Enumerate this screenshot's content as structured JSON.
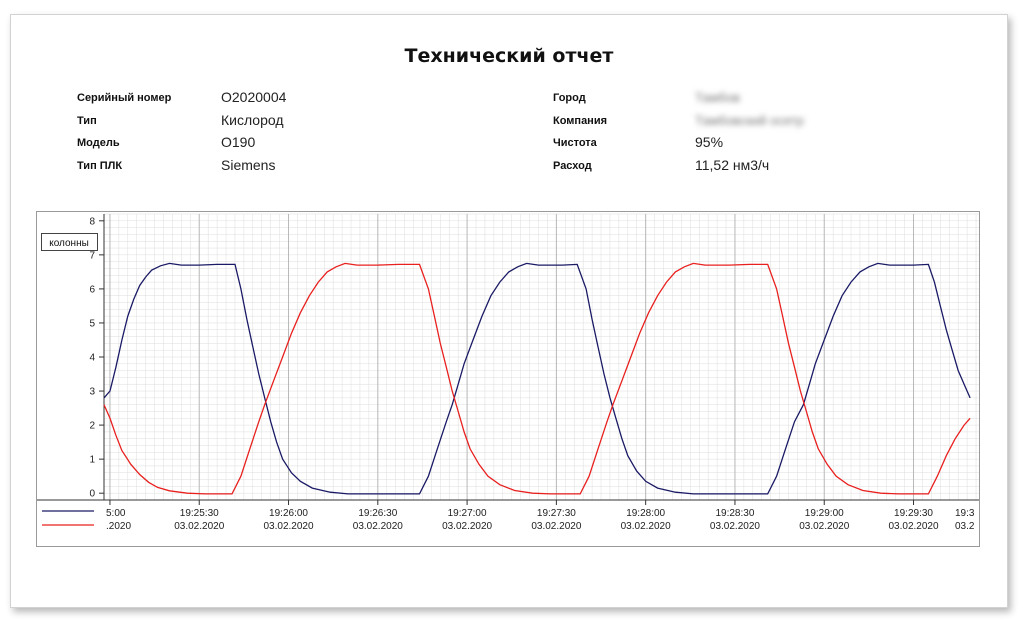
{
  "report": {
    "title": "Технический отчет",
    "fields_left": [
      {
        "label": "Серийный номер",
        "value": "O2020004"
      },
      {
        "label": "Тип",
        "value": "Кислород"
      },
      {
        "label": "Модель",
        "value": "O190"
      },
      {
        "label": "Тип ПЛК",
        "value": "Siemens"
      }
    ],
    "fields_right": [
      {
        "label": "Город",
        "value": "Тамбов"
      },
      {
        "label": "Компания",
        "value": "Тамбовский осетр"
      },
      {
        "label": "Чистота",
        "value": "95%"
      },
      {
        "label": "Расход",
        "value": "11,52 нм3/ч"
      }
    ]
  },
  "colors": {
    "series_blue": "#1a1a66",
    "series_red": "#e8201e",
    "grid": "#dddddd",
    "axis": "#333333"
  },
  "chart_data": {
    "type": "line",
    "ylabel": "колонны",
    "ylim": [
      -0.2,
      8.2
    ],
    "y_ticks": [
      0,
      1,
      2,
      3,
      4,
      5,
      6,
      7,
      8
    ],
    "x_range": [
      "19:24:58",
      "19:29:52"
    ],
    "x_ticks": [
      {
        "time": "19:25:00",
        "label": "5:00",
        "date": ".2020"
      },
      {
        "time": "19:25:30",
        "label": "19:25:30",
        "date": "03.02.2020"
      },
      {
        "time": "19:26:00",
        "label": "19:26:00",
        "date": "03.02.2020"
      },
      {
        "time": "19:26:30",
        "label": "19:26:30",
        "date": "03.02.2020"
      },
      {
        "time": "19:27:00",
        "label": "19:27:00",
        "date": "03.02.2020"
      },
      {
        "time": "19:27:30",
        "label": "19:27:30",
        "date": "03.02.2020"
      },
      {
        "time": "19:28:00",
        "label": "19:28:00",
        "date": "03.02.2020"
      },
      {
        "time": "19:28:30",
        "label": "19:28:30",
        "date": "03.02.2020"
      },
      {
        "time": "19:29:00",
        "label": "19:29:00",
        "date": "03.02.2020"
      },
      {
        "time": "19:29:30",
        "label": "19:29:30",
        "date": "03.02.2020"
      },
      {
        "time": "19:30:00",
        "label": "19:3",
        "date": "03.2"
      }
    ],
    "series": [
      {
        "color": "#1a1a66",
        "points": [
          [
            "19:24:58",
            2.8
          ],
          [
            "19:25:00",
            3.0
          ],
          [
            "19:25:02",
            3.7
          ],
          [
            "19:25:04",
            4.5
          ],
          [
            "19:25:06",
            5.2
          ],
          [
            "19:25:08",
            5.7
          ],
          [
            "19:25:10",
            6.1
          ],
          [
            "19:25:12",
            6.35
          ],
          [
            "19:25:14",
            6.55
          ],
          [
            "19:25:17",
            6.68
          ],
          [
            "19:25:20",
            6.75
          ],
          [
            "19:25:24",
            6.7
          ],
          [
            "19:25:30",
            6.7
          ],
          [
            "19:25:36",
            6.72
          ],
          [
            "19:25:42",
            6.72
          ],
          [
            "19:25:44",
            6.0
          ],
          [
            "19:25:46",
            5.1
          ],
          [
            "19:25:48",
            4.3
          ],
          [
            "19:25:50",
            3.5
          ],
          [
            "19:25:52",
            2.8
          ],
          [
            "19:25:54",
            2.1
          ],
          [
            "19:25:56",
            1.5
          ],
          [
            "19:25:58",
            1.0
          ],
          [
            "19:26:01",
            0.6
          ],
          [
            "19:26:04",
            0.35
          ],
          [
            "19:26:08",
            0.15
          ],
          [
            "19:26:14",
            0.03
          ],
          [
            "19:26:20",
            -0.02
          ],
          [
            "19:26:44",
            -0.02
          ],
          [
            "19:26:47",
            0.5
          ],
          [
            "19:26:50",
            1.3
          ],
          [
            "19:26:53",
            2.1
          ],
          [
            "19:26:55",
            2.6
          ],
          [
            "19:26:57",
            3.2
          ],
          [
            "19:26:59",
            3.8
          ],
          [
            "19:27:02",
            4.5
          ],
          [
            "19:27:05",
            5.2
          ],
          [
            "19:27:08",
            5.8
          ],
          [
            "19:27:11",
            6.2
          ],
          [
            "19:27:14",
            6.5
          ],
          [
            "19:27:17",
            6.65
          ],
          [
            "19:27:20",
            6.75
          ],
          [
            "19:27:24",
            6.7
          ],
          [
            "19:27:32",
            6.7
          ],
          [
            "19:27:37",
            6.72
          ],
          [
            "19:27:40",
            6.0
          ],
          [
            "19:27:42",
            5.1
          ],
          [
            "19:27:44",
            4.3
          ],
          [
            "19:27:46",
            3.5
          ],
          [
            "19:27:48",
            2.8
          ],
          [
            "19:27:50",
            2.2
          ],
          [
            "19:27:52",
            1.6
          ],
          [
            "19:27:54",
            1.1
          ],
          [
            "19:27:57",
            0.65
          ],
          [
            "19:28:00",
            0.35
          ],
          [
            "19:28:04",
            0.15
          ],
          [
            "19:28:10",
            0.03
          ],
          [
            "19:28:16",
            -0.02
          ],
          [
            "19:28:41",
            -0.02
          ],
          [
            "19:28:44",
            0.5
          ],
          [
            "19:28:47",
            1.3
          ],
          [
            "19:28:50",
            2.1
          ],
          [
            "19:28:53",
            2.6
          ],
          [
            "19:28:55",
            3.2
          ],
          [
            "19:28:57",
            3.8
          ],
          [
            "19:29:00",
            4.5
          ],
          [
            "19:29:03",
            5.2
          ],
          [
            "19:29:06",
            5.8
          ],
          [
            "19:29:09",
            6.2
          ],
          [
            "19:29:12",
            6.5
          ],
          [
            "19:29:15",
            6.65
          ],
          [
            "19:29:18",
            6.75
          ],
          [
            "19:29:22",
            6.7
          ],
          [
            "19:29:30",
            6.7
          ],
          [
            "19:29:35",
            6.72
          ],
          [
            "19:29:37",
            6.2
          ],
          [
            "19:29:39",
            5.5
          ],
          [
            "19:29:41",
            4.8
          ],
          [
            "19:29:43",
            4.2
          ],
          [
            "19:29:45",
            3.6
          ],
          [
            "19:29:47",
            3.2
          ],
          [
            "19:29:49",
            2.8
          ]
        ]
      },
      {
        "color": "#e8201e",
        "points": [
          [
            "19:24:58",
            2.6
          ],
          [
            "19:25:00",
            2.2
          ],
          [
            "19:25:02",
            1.7
          ],
          [
            "19:25:04",
            1.25
          ],
          [
            "19:25:07",
            0.85
          ],
          [
            "19:25:10",
            0.55
          ],
          [
            "19:25:13",
            0.32
          ],
          [
            "19:25:16",
            0.17
          ],
          [
            "19:25:20",
            0.07
          ],
          [
            "19:25:26",
            0.0
          ],
          [
            "19:25:32",
            -0.02
          ],
          [
            "19:25:41",
            -0.02
          ],
          [
            "19:25:44",
            0.5
          ],
          [
            "19:25:47",
            1.3
          ],
          [
            "19:25:50",
            2.1
          ],
          [
            "19:25:52",
            2.6
          ],
          [
            "19:25:55",
            3.3
          ],
          [
            "19:25:58",
            4.0
          ],
          [
            "19:26:01",
            4.7
          ],
          [
            "19:26:04",
            5.3
          ],
          [
            "19:26:07",
            5.8
          ],
          [
            "19:26:10",
            6.2
          ],
          [
            "19:26:13",
            6.5
          ],
          [
            "19:26:16",
            6.65
          ],
          [
            "19:26:19",
            6.75
          ],
          [
            "19:26:23",
            6.7
          ],
          [
            "19:26:30",
            6.7
          ],
          [
            "19:26:37",
            6.72
          ],
          [
            "19:26:44",
            6.72
          ],
          [
            "19:26:47",
            6.0
          ],
          [
            "19:26:49",
            5.2
          ],
          [
            "19:26:51",
            4.4
          ],
          [
            "19:26:53",
            3.7
          ],
          [
            "19:26:55",
            3.0
          ],
          [
            "19:26:57",
            2.4
          ],
          [
            "19:26:59",
            1.8
          ],
          [
            "19:27:01",
            1.3
          ],
          [
            "19:27:04",
            0.85
          ],
          [
            "19:27:07",
            0.5
          ],
          [
            "19:27:11",
            0.25
          ],
          [
            "19:27:16",
            0.08
          ],
          [
            "19:27:22",
            0.0
          ],
          [
            "19:27:28",
            -0.02
          ],
          [
            "19:27:38",
            -0.02
          ],
          [
            "19:27:41",
            0.5
          ],
          [
            "19:27:44",
            1.3
          ],
          [
            "19:27:47",
            2.1
          ],
          [
            "19:27:49",
            2.6
          ],
          [
            "19:27:52",
            3.3
          ],
          [
            "19:27:55",
            4.0
          ],
          [
            "19:27:58",
            4.7
          ],
          [
            "19:28:01",
            5.3
          ],
          [
            "19:28:04",
            5.8
          ],
          [
            "19:28:07",
            6.2
          ],
          [
            "19:28:10",
            6.5
          ],
          [
            "19:28:13",
            6.65
          ],
          [
            "19:28:16",
            6.75
          ],
          [
            "19:28:20",
            6.7
          ],
          [
            "19:28:28",
            6.7
          ],
          [
            "19:28:35",
            6.72
          ],
          [
            "19:28:41",
            6.72
          ],
          [
            "19:28:44",
            6.0
          ],
          [
            "19:28:46",
            5.2
          ],
          [
            "19:28:48",
            4.4
          ],
          [
            "19:28:50",
            3.7
          ],
          [
            "19:28:52",
            3.0
          ],
          [
            "19:28:54",
            2.4
          ],
          [
            "19:28:56",
            1.8
          ],
          [
            "19:28:58",
            1.3
          ],
          [
            "19:29:01",
            0.85
          ],
          [
            "19:29:04",
            0.5
          ],
          [
            "19:29:08",
            0.25
          ],
          [
            "19:29:13",
            0.08
          ],
          [
            "19:29:19",
            0.0
          ],
          [
            "19:29:25",
            -0.02
          ],
          [
            "19:29:35",
            -0.02
          ],
          [
            "19:29:38",
            0.5
          ],
          [
            "19:29:41",
            1.1
          ],
          [
            "19:29:44",
            1.6
          ],
          [
            "19:29:47",
            2.0
          ],
          [
            "19:29:49",
            2.2
          ]
        ]
      }
    ]
  }
}
